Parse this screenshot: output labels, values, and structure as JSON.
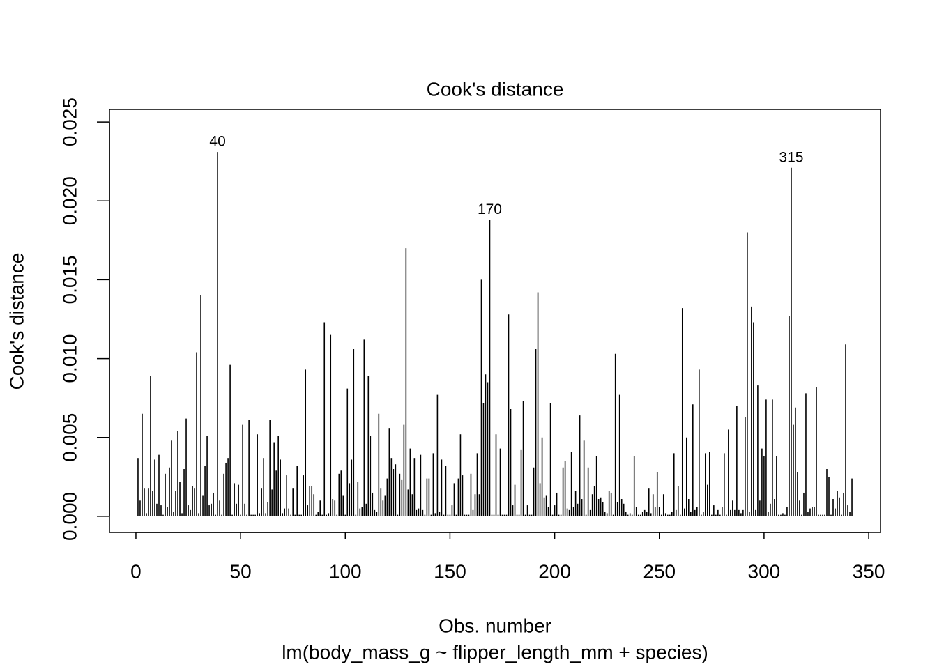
{
  "chart_data": {
    "type": "bar",
    "title": "Cook's distance",
    "x_label": "Obs. number",
    "subtitle": "lm(body_mass_g ~ flipper_length_mm + species)",
    "y_label": "Cook's distance",
    "color": "#000000",
    "xlim": [
      -12.64,
      355.64
    ],
    "ylim": [
      -0.00102,
      0.0258
    ],
    "xticks": [
      0,
      50,
      100,
      150,
      200,
      250,
      300,
      350
    ],
    "yticks": [
      {
        "value": 0,
        "label": "0.000"
      },
      {
        "value": 0.005,
        "label": "0.005"
      },
      {
        "value": 0.01,
        "label": "0.010"
      },
      {
        "value": 0.015,
        "label": "0.015"
      },
      {
        "value": 0.02,
        "label": "0.020"
      },
      {
        "value": 0.025,
        "label": "0.025"
      }
    ],
    "annotations": [
      {
        "text": "40",
        "x": 39
      },
      {
        "text": "170",
        "x": 169
      },
      {
        "text": "315",
        "x": 313
      }
    ],
    "x": [
      1,
      2,
      3,
      4,
      5,
      6,
      7,
      8,
      9,
      10,
      11,
      12,
      13,
      14,
      15,
      16,
      17,
      18,
      19,
      20,
      21,
      22,
      23,
      24,
      25,
      26,
      27,
      28,
      29,
      30,
      31,
      32,
      33,
      34,
      35,
      36,
      37,
      38,
      39,
      40,
      41,
      42,
      43,
      44,
      45,
      46,
      47,
      48,
      49,
      50,
      51,
      52,
      53,
      54,
      55,
      56,
      57,
      58,
      59,
      60,
      61,
      62,
      63,
      64,
      65,
      66,
      67,
      68,
      69,
      70,
      71,
      72,
      73,
      74,
      75,
      76,
      77,
      78,
      79,
      80,
      81,
      82,
      83,
      84,
      85,
      86,
      87,
      88,
      89,
      90,
      91,
      92,
      93,
      94,
      95,
      96,
      97,
      98,
      99,
      100,
      101,
      102,
      103,
      104,
      105,
      106,
      107,
      108,
      109,
      110,
      111,
      112,
      113,
      114,
      115,
      116,
      117,
      118,
      119,
      120,
      121,
      122,
      123,
      124,
      125,
      126,
      127,
      128,
      129,
      130,
      131,
      132,
      133,
      134,
      135,
      136,
      137,
      138,
      139,
      140,
      141,
      142,
      143,
      144,
      145,
      146,
      147,
      148,
      149,
      150,
      151,
      152,
      153,
      154,
      155,
      156,
      157,
      158,
      159,
      160,
      161,
      162,
      163,
      164,
      165,
      166,
      167,
      168,
      169,
      170,
      171,
      172,
      173,
      174,
      175,
      176,
      177,
      178,
      179,
      180,
      181,
      182,
      183,
      184,
      185,
      186,
      187,
      188,
      189,
      190,
      191,
      192,
      193,
      194,
      195,
      196,
      197,
      198,
      199,
      200,
      201,
      202,
      203,
      204,
      205,
      206,
      207,
      208,
      209,
      210,
      211,
      212,
      213,
      214,
      215,
      216,
      217,
      218,
      219,
      220,
      221,
      222,
      223,
      224,
      225,
      226,
      227,
      228,
      229,
      230,
      231,
      232,
      233,
      234,
      235,
      236,
      237,
      238,
      239,
      240,
      241,
      242,
      243,
      244,
      245,
      246,
      247,
      248,
      249,
      250,
      251,
      252,
      253,
      254,
      255,
      256,
      257,
      258,
      259,
      260,
      261,
      262,
      263,
      264,
      265,
      266,
      267,
      268,
      269,
      270,
      271,
      272,
      273,
      274,
      275,
      276,
      277,
      278,
      279,
      280,
      281,
      282,
      283,
      284,
      285,
      286,
      287,
      288,
      289,
      290,
      291,
      292,
      293,
      294,
      295,
      296,
      297,
      298,
      299,
      300,
      301,
      302,
      303,
      304,
      305,
      306,
      307,
      308,
      309,
      310,
      311,
      312,
      313,
      314,
      315,
      316,
      317,
      318,
      319,
      320,
      321,
      322,
      323,
      324,
      325,
      326,
      327,
      328,
      329,
      330,
      331,
      332,
      333,
      334,
      335,
      336,
      337,
      338,
      339,
      340,
      341,
      342
    ],
    "values": [
      0.0037,
      0.001,
      0.0065,
      0.0018,
      0.0002,
      0.0018,
      0.0089,
      0.0016,
      0.0036,
      0.0008,
      0.0039,
      0.0007,
      0.0001,
      0.0027,
      0.0006,
      0.0031,
      0.0048,
      0.0003,
      0.0016,
      0.0054,
      0.0022,
      0.0002,
      0.003,
      0.0062,
      0.0007,
      0.0004,
      0.0019,
      0.0018,
      0.0104,
      0.0002,
      0.014,
      0.0013,
      0.0032,
      0.0051,
      0.0007,
      0.0008,
      0.0015,
      0.0001,
      0.0231,
      0.001,
      0.0001,
      0.0027,
      0.0034,
      0.0037,
      0.0096,
      0.0001,
      0.0021,
      0.0008,
      0.002,
      0.0001,
      0.0058,
      0.0008,
      0.0001,
      0.0061,
      0.0001,
      0.0001,
      0.0001,
      0.0052,
      0.0002,
      0.0018,
      0.0037,
      0.0002,
      0.0009,
      0.0061,
      0.0017,
      0.0047,
      0.0029,
      0.0051,
      0.0036,
      0.0002,
      0.0005,
      0.0026,
      0.0005,
      0.0001,
      0.0018,
      0.0001,
      0.0032,
      0.0001,
      0.0001,
      0.0026,
      0.0093,
      0.0007,
      0.0019,
      0.0019,
      0.0014,
      0.0001,
      0.0003,
      0.001,
      0.0001,
      0.0123,
      0.0001,
      0.0002,
      0.0115,
      0.0011,
      0.001,
      0.0001,
      0.0027,
      0.0029,
      0.0013,
      0.0001,
      0.0081,
      0.0021,
      0.0036,
      0.0106,
      0.0001,
      0.0022,
      0.0005,
      0.0006,
      0.0112,
      0.0008,
      0.0089,
      0.0051,
      0.0015,
      0.0004,
      0.0003,
      0.0065,
      0.0018,
      0.001,
      0.0013,
      0.0024,
      0.0056,
      0.0037,
      0.003,
      0.0033,
      0.0001,
      0.0027,
      0.0023,
      0.0058,
      0.017,
      0.0017,
      0.0043,
      0.0014,
      0.0037,
      0.0004,
      0.0005,
      0.0039,
      0.0004,
      0.0001,
      0.0024,
      0.0024,
      0.0001,
      0.004,
      0.0002,
      0.0077,
      0.0003,
      0.0036,
      0.0001,
      0.0032,
      0.0001,
      0.0001,
      0.0007,
      0.0021,
      0.0001,
      0.0024,
      0.0052,
      0.0026,
      0.0001,
      0.0001,
      0.0001,
      0.0027,
      0.0004,
      0.0014,
      0.004,
      0.0014,
      0.015,
      0.0072,
      0.009,
      0.0085,
      0.0188,
      0.0001,
      0.0001,
      0.0052,
      0.0001,
      0.0043,
      0.0001,
      0.0001,
      0.0001,
      0.0128,
      0.0068,
      0.0007,
      0.002,
      0.0001,
      0.0001,
      0.0042,
      0.0073,
      0.0001,
      0.0007,
      0.0001,
      0.0001,
      0.0031,
      0.0106,
      0.0142,
      0.0021,
      0.005,
      0.0012,
      0.0013,
      0.0006,
      0.0072,
      0.0001,
      0.0007,
      0.0015,
      0.0001,
      0.0001,
      0.0031,
      0.0035,
      0.0005,
      0.0004,
      0.0041,
      0.0006,
      0.0016,
      0.0008,
      0.0064,
      0.0011,
      0.0048,
      0.0001,
      0.0031,
      0.0004,
      0.0014,
      0.0019,
      0.0038,
      0.0011,
      0.0012,
      0.0009,
      0.0003,
      0.0002,
      0.0016,
      0.0015,
      0.0001,
      0.0103,
      0.0009,
      0.0077,
      0.0011,
      0.0008,
      0.0003,
      0.0001,
      0.0002,
      0.0001,
      0.0038,
      0.0006,
      0.0001,
      0.0001,
      0.0003,
      0.0004,
      0.0003,
      0.0018,
      0.0002,
      0.0014,
      0.0006,
      0.0028,
      0.0006,
      0.0001,
      0.0014,
      0.0002,
      0.0001,
      0.0001,
      0.0003,
      0.004,
      0.0004,
      0.0019,
      0.0001,
      0.0132,
      0.0005,
      0.005,
      0.0011,
      0.0003,
      0.0071,
      0.0004,
      0.0006,
      0.0093,
      0.0001,
      0.0003,
      0.004,
      0.002,
      0.0041,
      0.0001,
      0.0007,
      0.0001,
      0.0004,
      0.0001,
      0.0006,
      0.004,
      0.0001,
      0.0055,
      0.0004,
      0.001,
      0.0004,
      0.007,
      0.0004,
      0.0002,
      0.0004,
      0.0063,
      0.018,
      0.0003,
      0.0133,
      0.0123,
      0.0004,
      0.0083,
      0.001,
      0.0043,
      0.0038,
      0.0074,
      0.0003,
      0.0008,
      0.0074,
      0.0011,
      0.0038,
      0.0001,
      0.0001,
      0.0002,
      0.0001,
      0.0006,
      0.0127,
      0.0221,
      0.0058,
      0.0069,
      0.0028,
      0.001,
      0.0001,
      0.0015,
      0.0078,
      0.0003,
      0.0005,
      0.0006,
      0.0006,
      0.0082,
      0.0001,
      0.0001,
      0.0001,
      0.0001,
      0.003,
      0.0025,
      0.0001,
      0.0011,
      0.0005,
      0.0016,
      0.0012,
      0.0001,
      0.0015,
      0.0109,
      0.0007,
      0.0003,
      0.0024
    ]
  }
}
